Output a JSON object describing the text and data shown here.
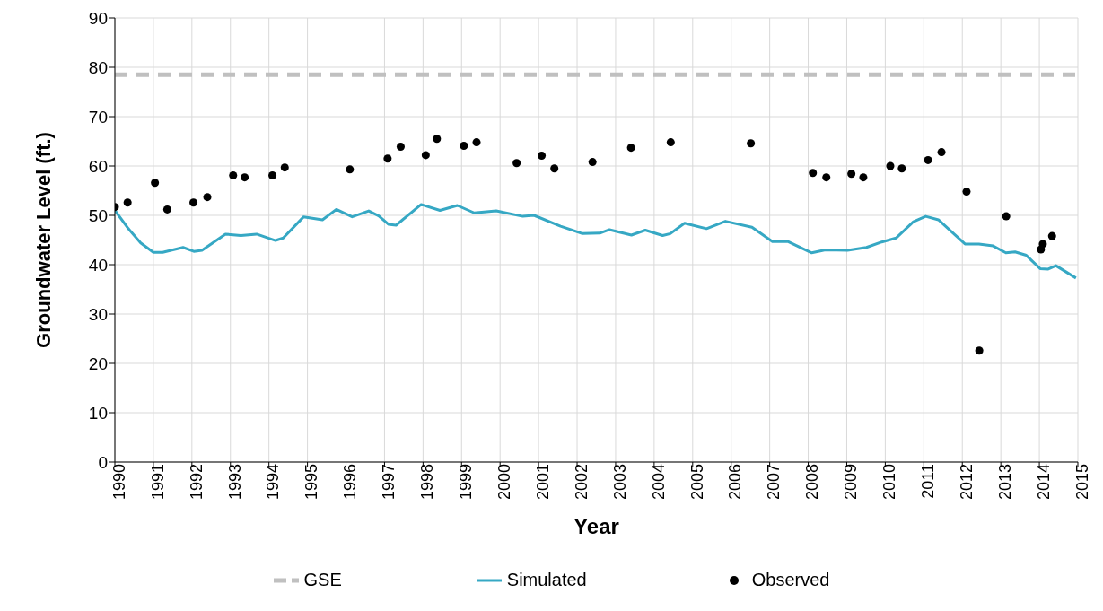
{
  "chart_data": {
    "type": "line",
    "xlabel": "Year",
    "ylabel": "Groundwater Level (ft.)",
    "xlim": [
      1990,
      2015
    ],
    "xticks": [
      1990,
      1991,
      1992,
      1993,
      1994,
      1995,
      1996,
      1997,
      1998,
      1999,
      2000,
      2001,
      2002,
      2003,
      2004,
      2005,
      2006,
      2007,
      2008,
      2009,
      2010,
      2011,
      2012,
      2013,
      2014,
      2015
    ],
    "ylim": [
      0,
      90
    ],
    "yticks": [
      0,
      10,
      20,
      30,
      40,
      50,
      60,
      70,
      80,
      90
    ],
    "grid": true,
    "legend": "bottom",
    "series": [
      {
        "name": "GSE",
        "color": "#c0c0c0",
        "line_style": "dashed",
        "marker": "none",
        "x": [
          1990,
          2015
        ],
        "values": [
          78.5,
          78.5
        ]
      },
      {
        "name": "Simulated",
        "color": "#36a8c4",
        "line_style": "solid",
        "marker": "none",
        "x": [
          1990.0,
          1990.35,
          1990.67,
          1991.0,
          1991.24,
          1991.77,
          1992.05,
          1992.26,
          1992.87,
          1993.27,
          1993.68,
          1994.17,
          1994.37,
          1994.9,
          1995.39,
          1995.75,
          1996.16,
          1996.59,
          1996.85,
          1997.1,
          1997.3,
          1997.95,
          1998.44,
          1998.89,
          1999.33,
          1999.9,
          2000.59,
          2000.88,
          2001.57,
          2002.14,
          2002.59,
          2002.84,
          2003.41,
          2003.77,
          2004.22,
          2004.42,
          2004.79,
          2005.36,
          2005.85,
          2006.54,
          2007.07,
          2007.47,
          2008.09,
          2008.45,
          2009.02,
          2009.51,
          2009.91,
          2010.28,
          2010.73,
          2011.05,
          2011.38,
          2012.07,
          2012.43,
          2012.8,
          2013.13,
          2013.37,
          2013.66,
          2014.02,
          2014.23,
          2014.43,
          2014.95
        ],
        "values": [
          51,
          47.3,
          44.4,
          42.5,
          42.5,
          43.5,
          42.7,
          42.9,
          46.2,
          45.9,
          46.2,
          44.9,
          45.4,
          49.7,
          49.1,
          51.2,
          49.7,
          50.9,
          49.9,
          48.2,
          48.0,
          52.2,
          51.0,
          52.0,
          50.5,
          50.9,
          49.8,
          50.0,
          47.8,
          46.3,
          46.4,
          47.1,
          46.0,
          47.0,
          45.9,
          46.3,
          48.4,
          47.3,
          48.8,
          47.6,
          44.7,
          44.7,
          42.4,
          43.0,
          42.9,
          43.5,
          44.6,
          45.4,
          48.7,
          49.8,
          49.1,
          44.2,
          44.2,
          43.8,
          42.4,
          42.6,
          41.9,
          39.2,
          39.1,
          39.8,
          37.3
        ]
      },
      {
        "name": "Observed",
        "type": "scatter",
        "color": "#000000",
        "marker": "circle",
        "x": [
          1990.0,
          1990.33,
          1991.04,
          1991.36,
          1992.04,
          1992.4,
          1993.07,
          1993.37,
          1994.09,
          1994.41,
          1996.1,
          1997.08,
          1997.42,
          1998.07,
          1998.36,
          1999.06,
          1999.39,
          2000.43,
          2001.08,
          2001.41,
          2002.4,
          2003.4,
          2004.43,
          2006.51,
          2008.12,
          2008.47,
          2009.12,
          2009.43,
          2010.13,
          2010.43,
          2011.11,
          2011.46,
          2012.11,
          2012.44,
          2013.14,
          2014.04,
          2014.09,
          2014.33
        ],
        "values": [
          51.7,
          52.6,
          56.6,
          51.2,
          52.6,
          53.7,
          58.1,
          57.7,
          58.1,
          59.7,
          59.3,
          61.5,
          63.9,
          62.2,
          65.5,
          64.1,
          64.8,
          60.6,
          62.1,
          59.5,
          60.8,
          63.7,
          64.8,
          64.6,
          58.6,
          57.7,
          58.4,
          57.7,
          60.0,
          59.5,
          61.2,
          62.8,
          54.8,
          22.6,
          49.8,
          43.1,
          44.2,
          45.8
        ]
      }
    ]
  }
}
